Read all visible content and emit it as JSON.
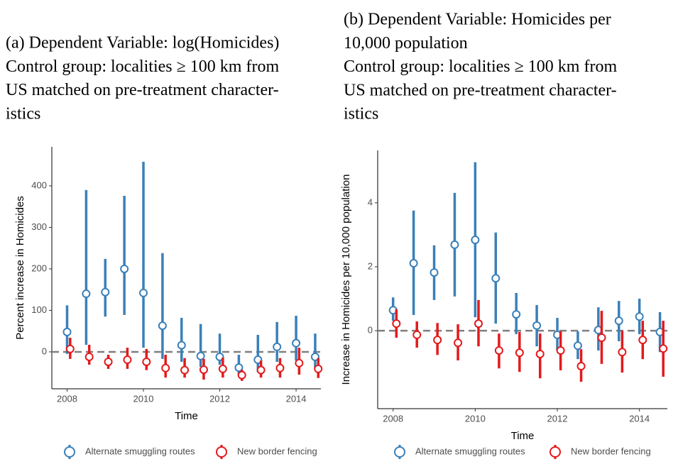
{
  "chart_data": [
    {
      "type": "errorbar",
      "caption": [
        "(a) Dependent Variable: log(Homicides)",
        "Control group: localities ≥ 100 km from",
        "US matched on pre-treatment character-",
        "istics"
      ],
      "x_label": "Time",
      "y_label": "Percent increase in Homicides",
      "xlim": [
        2007.6,
        2014.65
      ],
      "xticks": [
        2008,
        2010,
        2012,
        2014
      ],
      "ylim": [
        -89,
        494
      ],
      "yticks": [
        0,
        100,
        200,
        300,
        400
      ],
      "reference_line": 0,
      "grid": false,
      "series": [
        {
          "name": "Alternate smuggling routes",
          "color": "#3a80b9",
          "x": [
            2008,
            2008.5,
            2009,
            2009.5,
            2010,
            2010.5,
            2011,
            2011.5,
            2012,
            2012.5,
            2013,
            2013.5,
            2014,
            2014.5
          ],
          "values": [
            48,
            140,
            144,
            200,
            142,
            63,
            16,
            -10,
            -12,
            -38,
            -19,
            12,
            21,
            -12
          ],
          "lower": [
            -5,
            17,
            85,
            89,
            10,
            -17,
            -24,
            -36,
            -31,
            -58,
            -48,
            -24,
            -21,
            -38
          ],
          "upper": [
            112,
            390,
            224,
            376,
            458,
            238,
            82,
            67,
            44,
            -7,
            41,
            72,
            87,
            44
          ]
        },
        {
          "name": "New border fencing",
          "color": "#e31a1c",
          "x": [
            2008.08,
            2008.58,
            2009.08,
            2009.58,
            2010.08,
            2010.58,
            2011.08,
            2011.58,
            2012.08,
            2012.58,
            2013.08,
            2013.58,
            2014.08,
            2014.58
          ],
          "values": [
            7,
            -12,
            -24,
            -19,
            -24,
            -39,
            -44,
            -43,
            -41,
            -56,
            -44,
            -39,
            -27,
            -41
          ],
          "lower": [
            -17,
            -31,
            -41,
            -41,
            -44,
            -62,
            -62,
            -67,
            -62,
            -70,
            -62,
            -62,
            -55,
            -63
          ],
          "upper": [
            34,
            17,
            -7,
            10,
            7,
            -7,
            -15,
            -17,
            -14,
            -43,
            -21,
            -15,
            10,
            -15
          ]
        }
      ]
    },
    {
      "type": "errorbar",
      "caption": [
        "(b) Dependent Variable: Homicides per",
        "10,000 population",
        "Control group: localities ≥ 100 km from",
        "US matched on pre-treatment character-",
        "istics"
      ],
      "x_label": "Time",
      "y_label": "Increase in Homicides per 10,000 population",
      "xlim": [
        2007.625,
        2014.68
      ],
      "xticks": [
        2008,
        2010,
        2012,
        2014
      ],
      "ylim": [
        -2.44,
        5.64
      ],
      "yticks": [
        0,
        2,
        4
      ],
      "reference_line": 0,
      "grid": false,
      "series": [
        {
          "name": "Alternate smuggling routes",
          "color": "#3a80b9",
          "x": [
            2008,
            2008.5,
            2009,
            2009.5,
            2010,
            2010.5,
            2011,
            2011.5,
            2012,
            2012.5,
            2013,
            2013.5,
            2014,
            2014.5
          ],
          "values": [
            0.64,
            2.11,
            1.82,
            2.69,
            2.84,
            1.64,
            0.51,
            0.16,
            -0.13,
            -0.47,
            0.02,
            0.31,
            0.44,
            -0.04
          ],
          "lower": [
            0.31,
            0.49,
            0.96,
            1.07,
            0.42,
            0.22,
            -0.11,
            -0.49,
            -0.62,
            -0.89,
            -0.62,
            -0.33,
            -0.11,
            -0.67
          ],
          "upper": [
            1.04,
            3.76,
            2.67,
            4.31,
            5.27,
            3.07,
            1.18,
            0.8,
            0.4,
            -0.02,
            0.73,
            0.93,
            1.0,
            0.58
          ]
        },
        {
          "name": "New border fencing",
          "color": "#e31a1c",
          "x": [
            2008.08,
            2008.58,
            2009.08,
            2009.58,
            2010.08,
            2010.58,
            2011.08,
            2011.58,
            2012.08,
            2012.58,
            2013.08,
            2013.58,
            2014.08,
            2014.58
          ],
          "values": [
            0.22,
            -0.13,
            -0.29,
            -0.38,
            0.22,
            -0.62,
            -0.69,
            -0.73,
            -0.62,
            -1.11,
            -0.22,
            -0.67,
            -0.29,
            -0.56
          ],
          "lower": [
            -0.22,
            -0.53,
            -0.76,
            -0.93,
            -0.49,
            -1.18,
            -1.29,
            -1.49,
            -1.24,
            -1.6,
            -1.04,
            -1.31,
            -0.89,
            -1.44
          ],
          "upper": [
            0.67,
            0.29,
            0.24,
            0.2,
            0.96,
            -0.09,
            -0.04,
            -0.09,
            -0.02,
            -0.58,
            0.62,
            0,
            0.31,
            0.31
          ]
        }
      ]
    }
  ]
}
